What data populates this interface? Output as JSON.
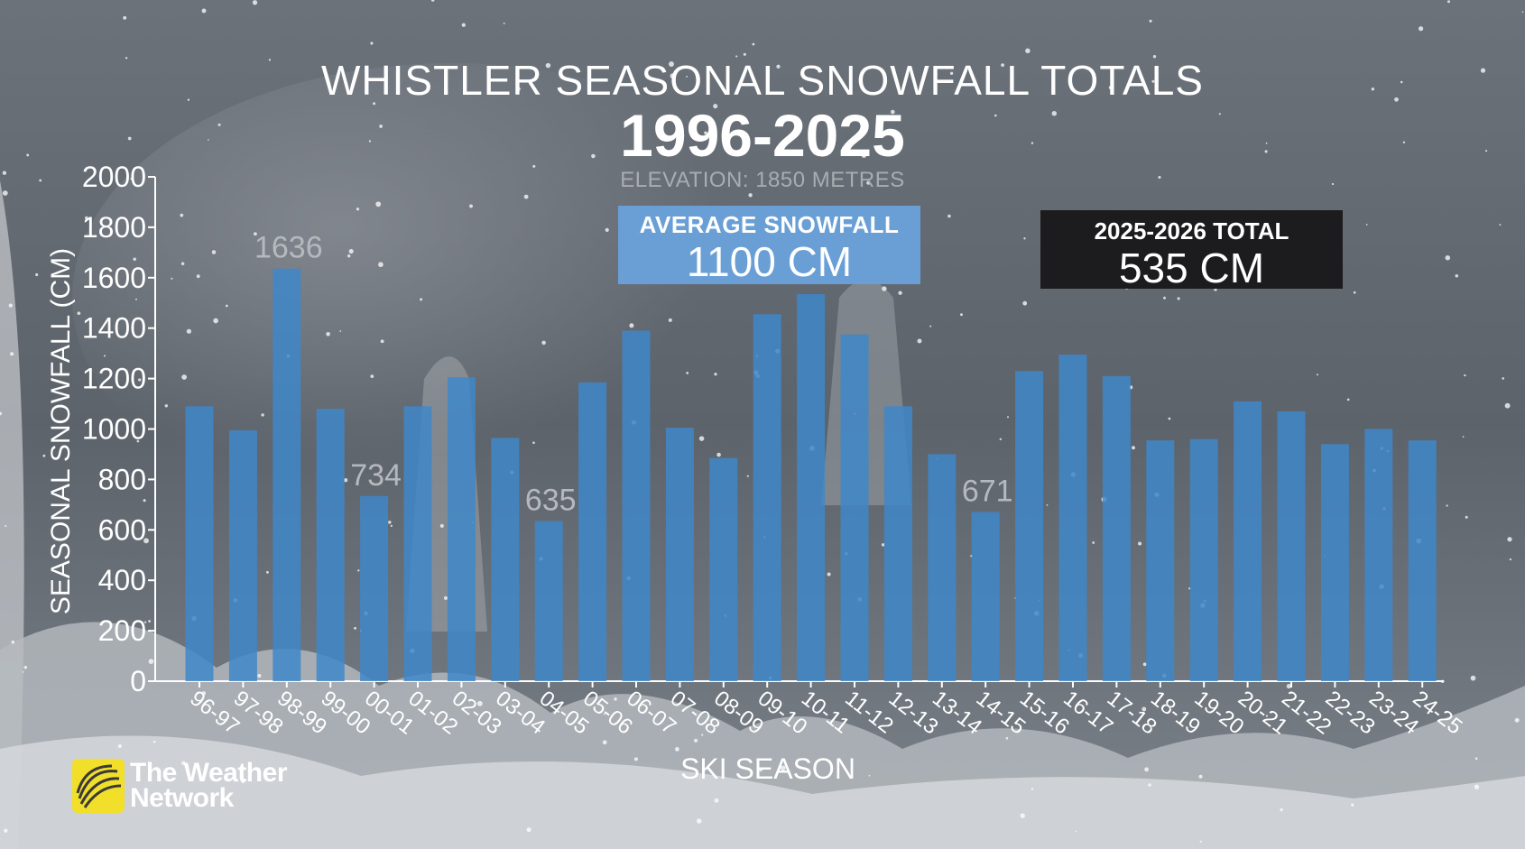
{
  "chart_data": {
    "type": "bar",
    "title": "WHISTLER SEASONAL SNOWFALL TOTALS",
    "subtitle": "1996-2025",
    "note": "ELEVATION: 1850 METRES",
    "xlabel": "SKI SEASON",
    "ylabel": "SEASONAL SNOWFALL (CM)",
    "ylim": [
      0,
      2000
    ],
    "yticks": [
      "0",
      "200",
      "400",
      "600",
      "800",
      "1000",
      "1200",
      "1400",
      "1600",
      "1800",
      "2000"
    ],
    "categories": [
      "96-97",
      "97-98",
      "98-99",
      "99-00",
      "00-01",
      "01-02",
      "02-03",
      "03-04",
      "04-05",
      "05-06",
      "06-07",
      "07-08",
      "08-09",
      "09-10",
      "10-11",
      "11-12",
      "12-13",
      "13-14",
      "14-15",
      "15-16",
      "16-17",
      "17-18",
      "18-19",
      "19-20",
      "20-21",
      "21-22",
      "22-23",
      "23-24",
      "24-25"
    ],
    "values": [
      1090,
      995,
      1636,
      1080,
      734,
      1090,
      1205,
      965,
      635,
      1185,
      1390,
      1005,
      885,
      1455,
      1535,
      1375,
      1090,
      900,
      671,
      1230,
      1295,
      1210,
      955,
      960,
      1110,
      1070,
      940,
      1000,
      955
    ],
    "data_labels": [
      {
        "category": "98-99",
        "text": "1636"
      },
      {
        "category": "00-01",
        "text": "734"
      },
      {
        "category": "04-05",
        "text": "635"
      },
      {
        "category": "14-15",
        "text": "671"
      }
    ],
    "bar_color": "#3f87c9",
    "grid": false,
    "legend": "none"
  },
  "average": {
    "label": "AVERAGE SNOWFALL",
    "value": "1100 CM",
    "color": "#6a9fd6"
  },
  "current_total": {
    "label": "2025-2026 TOTAL",
    "value": "535 CM",
    "color": "#1c1c1e"
  },
  "logo": {
    "line1": "The Weather",
    "line2": "Network",
    "icon": "weather-network-logo-icon",
    "color": "#f2df2a"
  }
}
